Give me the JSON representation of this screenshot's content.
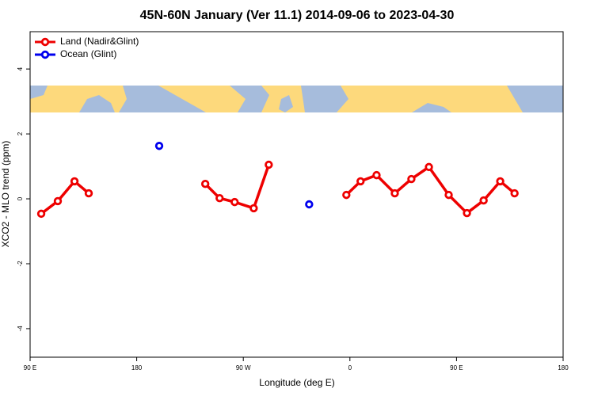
{
  "chart_data": {
    "type": "line",
    "title": "45N-60N January (Ver 11.1)   2014-09-06 to 2023-04-30",
    "x_label": "Longitude (deg E)",
    "y_label": "XCO2 - MLO trend (ppm)",
    "xlim": [
      90,
      540
    ],
    "ylim": [
      -4.88,
      5.15
    ],
    "xticks": [
      {
        "value": 90,
        "label": "90 E"
      },
      180,
      {
        "value": 270,
        "label": "90 W"
      },
      {
        "value": 360,
        "label": "0"
      },
      {
        "value": 450,
        "label": "90 E"
      },
      {
        "value": 540,
        "label": "180"
      }
    ],
    "yticks": [
      -4,
      -2,
      0,
      2,
      4
    ],
    "legend": "top-left",
    "series": [
      {
        "name": "Land (Nadir&Glint)",
        "color": "#ee0000",
        "x": [
          99.4,
          113.4,
          127.5,
          139.5,
          null,
          237.9,
          250,
          262.7,
          278.8,
          291.5,
          null,
          357,
          369,
          382.5,
          397.9,
          411.9,
          426.7,
          443.4,
          458.8,
          472.9,
          486.9,
          499
        ],
        "values": [
          -0.46,
          -0.07,
          0.54,
          0.17,
          null,
          0.46,
          0.02,
          -0.1,
          -0.29,
          1.05,
          null,
          0.12,
          0.54,
          0.73,
          0.17,
          0.61,
          0.98,
          0.12,
          -0.44,
          -0.05,
          0.54,
          0.17
        ]
      },
      {
        "name": "Ocean (Glint)",
        "color": "#0000ee",
        "markers_only": true,
        "x": [
          199,
          325.6
        ],
        "values": [
          1.63,
          -0.17
        ]
      }
    ]
  }
}
